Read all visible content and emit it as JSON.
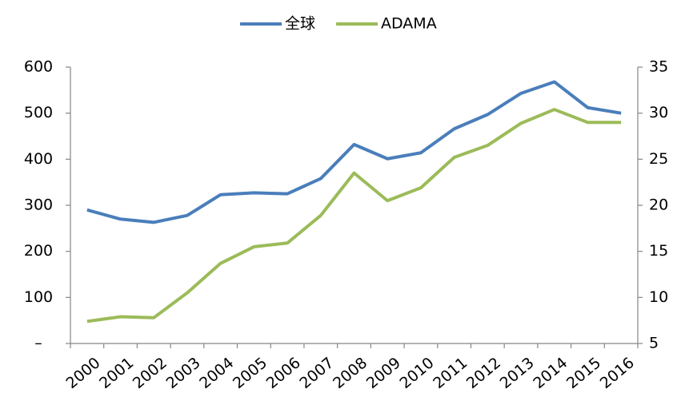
{
  "chart_data": {
    "type": "line",
    "categories": [
      "2000",
      "2001",
      "2002",
      "2003",
      "2004",
      "2005",
      "2006",
      "2007",
      "2008",
      "2009",
      "2010",
      "2011",
      "2012",
      "2013",
      "2014",
      "2015",
      "2016"
    ],
    "series": [
      {
        "name": "全球",
        "color": "#4a7ebb",
        "values": [
          290,
          270,
          263,
          278,
          323,
          327,
          325,
          358,
          432,
          401,
          414,
          466,
          497,
          543,
          568,
          512,
          500
        ]
      },
      {
        "name": "ADAMA",
        "color": "#9bbb59",
        "axis": "y2",
        "values": [
          7.4,
          7.9,
          7.8,
          10.5,
          13.7,
          15.5,
          15.9,
          18.9,
          23.5,
          20.5,
          21.9,
          25.2,
          26.5,
          28.9,
          30.4,
          29.0,
          29.0
        ]
      }
    ],
    "ylim": [
      0,
      600
    ],
    "yticks": [
      {
        "value": 0,
        "label": "–"
      },
      100,
      200,
      300,
      400,
      500,
      600
    ],
    "y2lim": [
      5,
      35
    ],
    "y2ticks": [
      5,
      10,
      15,
      20,
      25,
      30,
      35
    ],
    "legend": "top",
    "grid": false
  }
}
